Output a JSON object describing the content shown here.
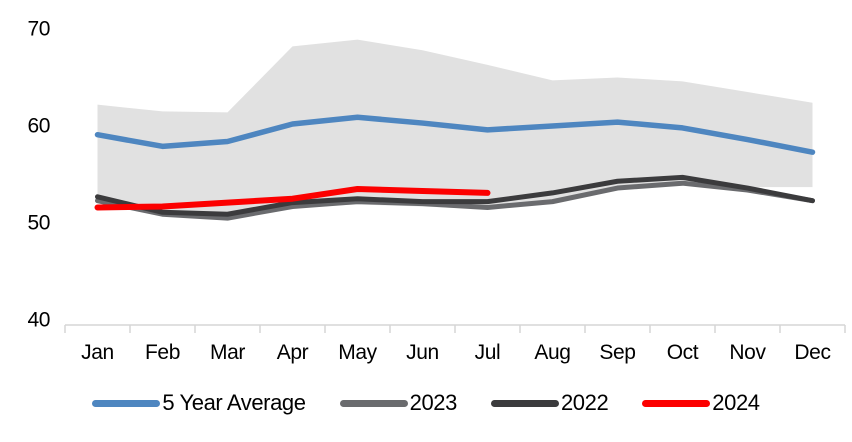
{
  "chart_data": {
    "type": "line",
    "title": "",
    "categories": [
      "Jan",
      "Feb",
      "Mar",
      "Apr",
      "May",
      "Jun",
      "Jul",
      "Aug",
      "Sep",
      "Oct",
      "Nov",
      "Dec"
    ],
    "y_axis": {
      "ticks": [
        "70",
        "60",
        "50",
        "40"
      ],
      "tick_values": [
        70,
        60,
        50,
        40
      ],
      "min": 40,
      "max": 72
    },
    "x_axis": {
      "grid": false
    },
    "band": {
      "description": "shaded 5-year min-max range",
      "color": "#E1E1E1",
      "top": [
        62.1,
        61.4,
        61.3,
        68.1,
        68.8,
        67.7,
        66.2,
        64.6,
        64.9,
        64.5,
        63.4,
        62.3
      ],
      "bottom": [
        52.4,
        51.1,
        50.9,
        51.5,
        51.8,
        51.6,
        51.3,
        52.0,
        53.4,
        53.9,
        53.6,
        53.6
      ]
    },
    "series": [
      {
        "name": "5 Year Average",
        "color": "#4E86C0",
        "width": 5.5,
        "values": [
          59.0,
          57.8,
          58.3,
          60.1,
          60.8,
          60.2,
          59.5,
          59.9,
          60.3,
          59.7,
          58.5,
          57.2
        ]
      },
      {
        "name": "2023",
        "color": "#6A6B6E",
        "width": 5,
        "values": [
          52.2,
          50.8,
          50.4,
          51.6,
          52.1,
          51.9,
          51.5,
          52.1,
          53.5,
          54.0,
          53.3,
          52.2
        ]
      },
      {
        "name": "2022",
        "color": "#3B3B3D",
        "width": 5,
        "values": [
          52.6,
          51.0,
          50.8,
          52.0,
          52.4,
          52.1,
          52.1,
          53.0,
          54.2,
          54.6,
          53.5,
          52.2
        ]
      },
      {
        "name": "2024",
        "color": "#FC0000",
        "width": 6,
        "values": [
          51.5,
          51.6,
          52.0,
          52.4,
          53.4,
          53.2,
          53.0,
          null,
          null,
          null,
          null,
          null
        ]
      }
    ],
    "legend_position": "bottom",
    "colors": {
      "axis": "#D6D6D6",
      "text": "#000000",
      "background": "#FFFFFF"
    }
  }
}
